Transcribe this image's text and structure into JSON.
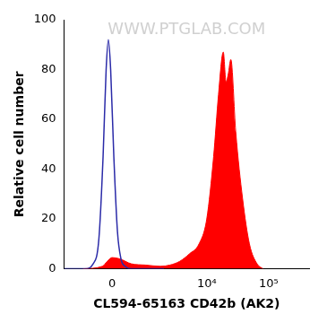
{
  "chart_data": {
    "type": "line",
    "x_label": "CL594-65163 CD42b (AK2)",
    "y_label": "Relative cell number",
    "annotations": [
      "WWW.PTGLAB.COM"
    ],
    "xlim": [
      -1700,
      450000
    ],
    "xticks": [
      0,
      {
        "value": 10000,
        "label": "10⁴"
      },
      {
        "value": 100000,
        "label": "10⁵"
      }
    ],
    "ylim": [
      0,
      100
    ],
    "yticks": [
      0,
      20,
      40,
      60,
      80,
      100
    ],
    "grid": false,
    "series": [
      {
        "type": "line",
        "color": "#2a2aa8",
        "x": [
          -1700,
          -700,
          -450,
          -300,
          -200,
          -130,
          -80,
          -30,
          40,
          120,
          200,
          300,
          450,
          2000
        ],
        "values": [
          0,
          0,
          2,
          12,
          45,
          80,
          92,
          80,
          45,
          15,
          4,
          1,
          0,
          0
        ]
      },
      {
        "type": "area",
        "color": "#ff0000",
        "x": [
          -770,
          -216,
          -105,
          0,
          172,
          460,
          955,
          1735,
          2500,
          3640,
          5230,
          7500,
          10000,
          12900,
          15500,
          18500,
          20500,
          22200,
          24500,
          29400,
          38000,
          48900,
          65000,
          81000
        ],
        "values": [
          0,
          1,
          3,
          4.5,
          4,
          2,
          1.5,
          1,
          1.5,
          3,
          6,
          10,
          20,
          45,
          70,
          87,
          75,
          78,
          84,
          55,
          28,
          10,
          2,
          0
        ]
      }
    ]
  }
}
